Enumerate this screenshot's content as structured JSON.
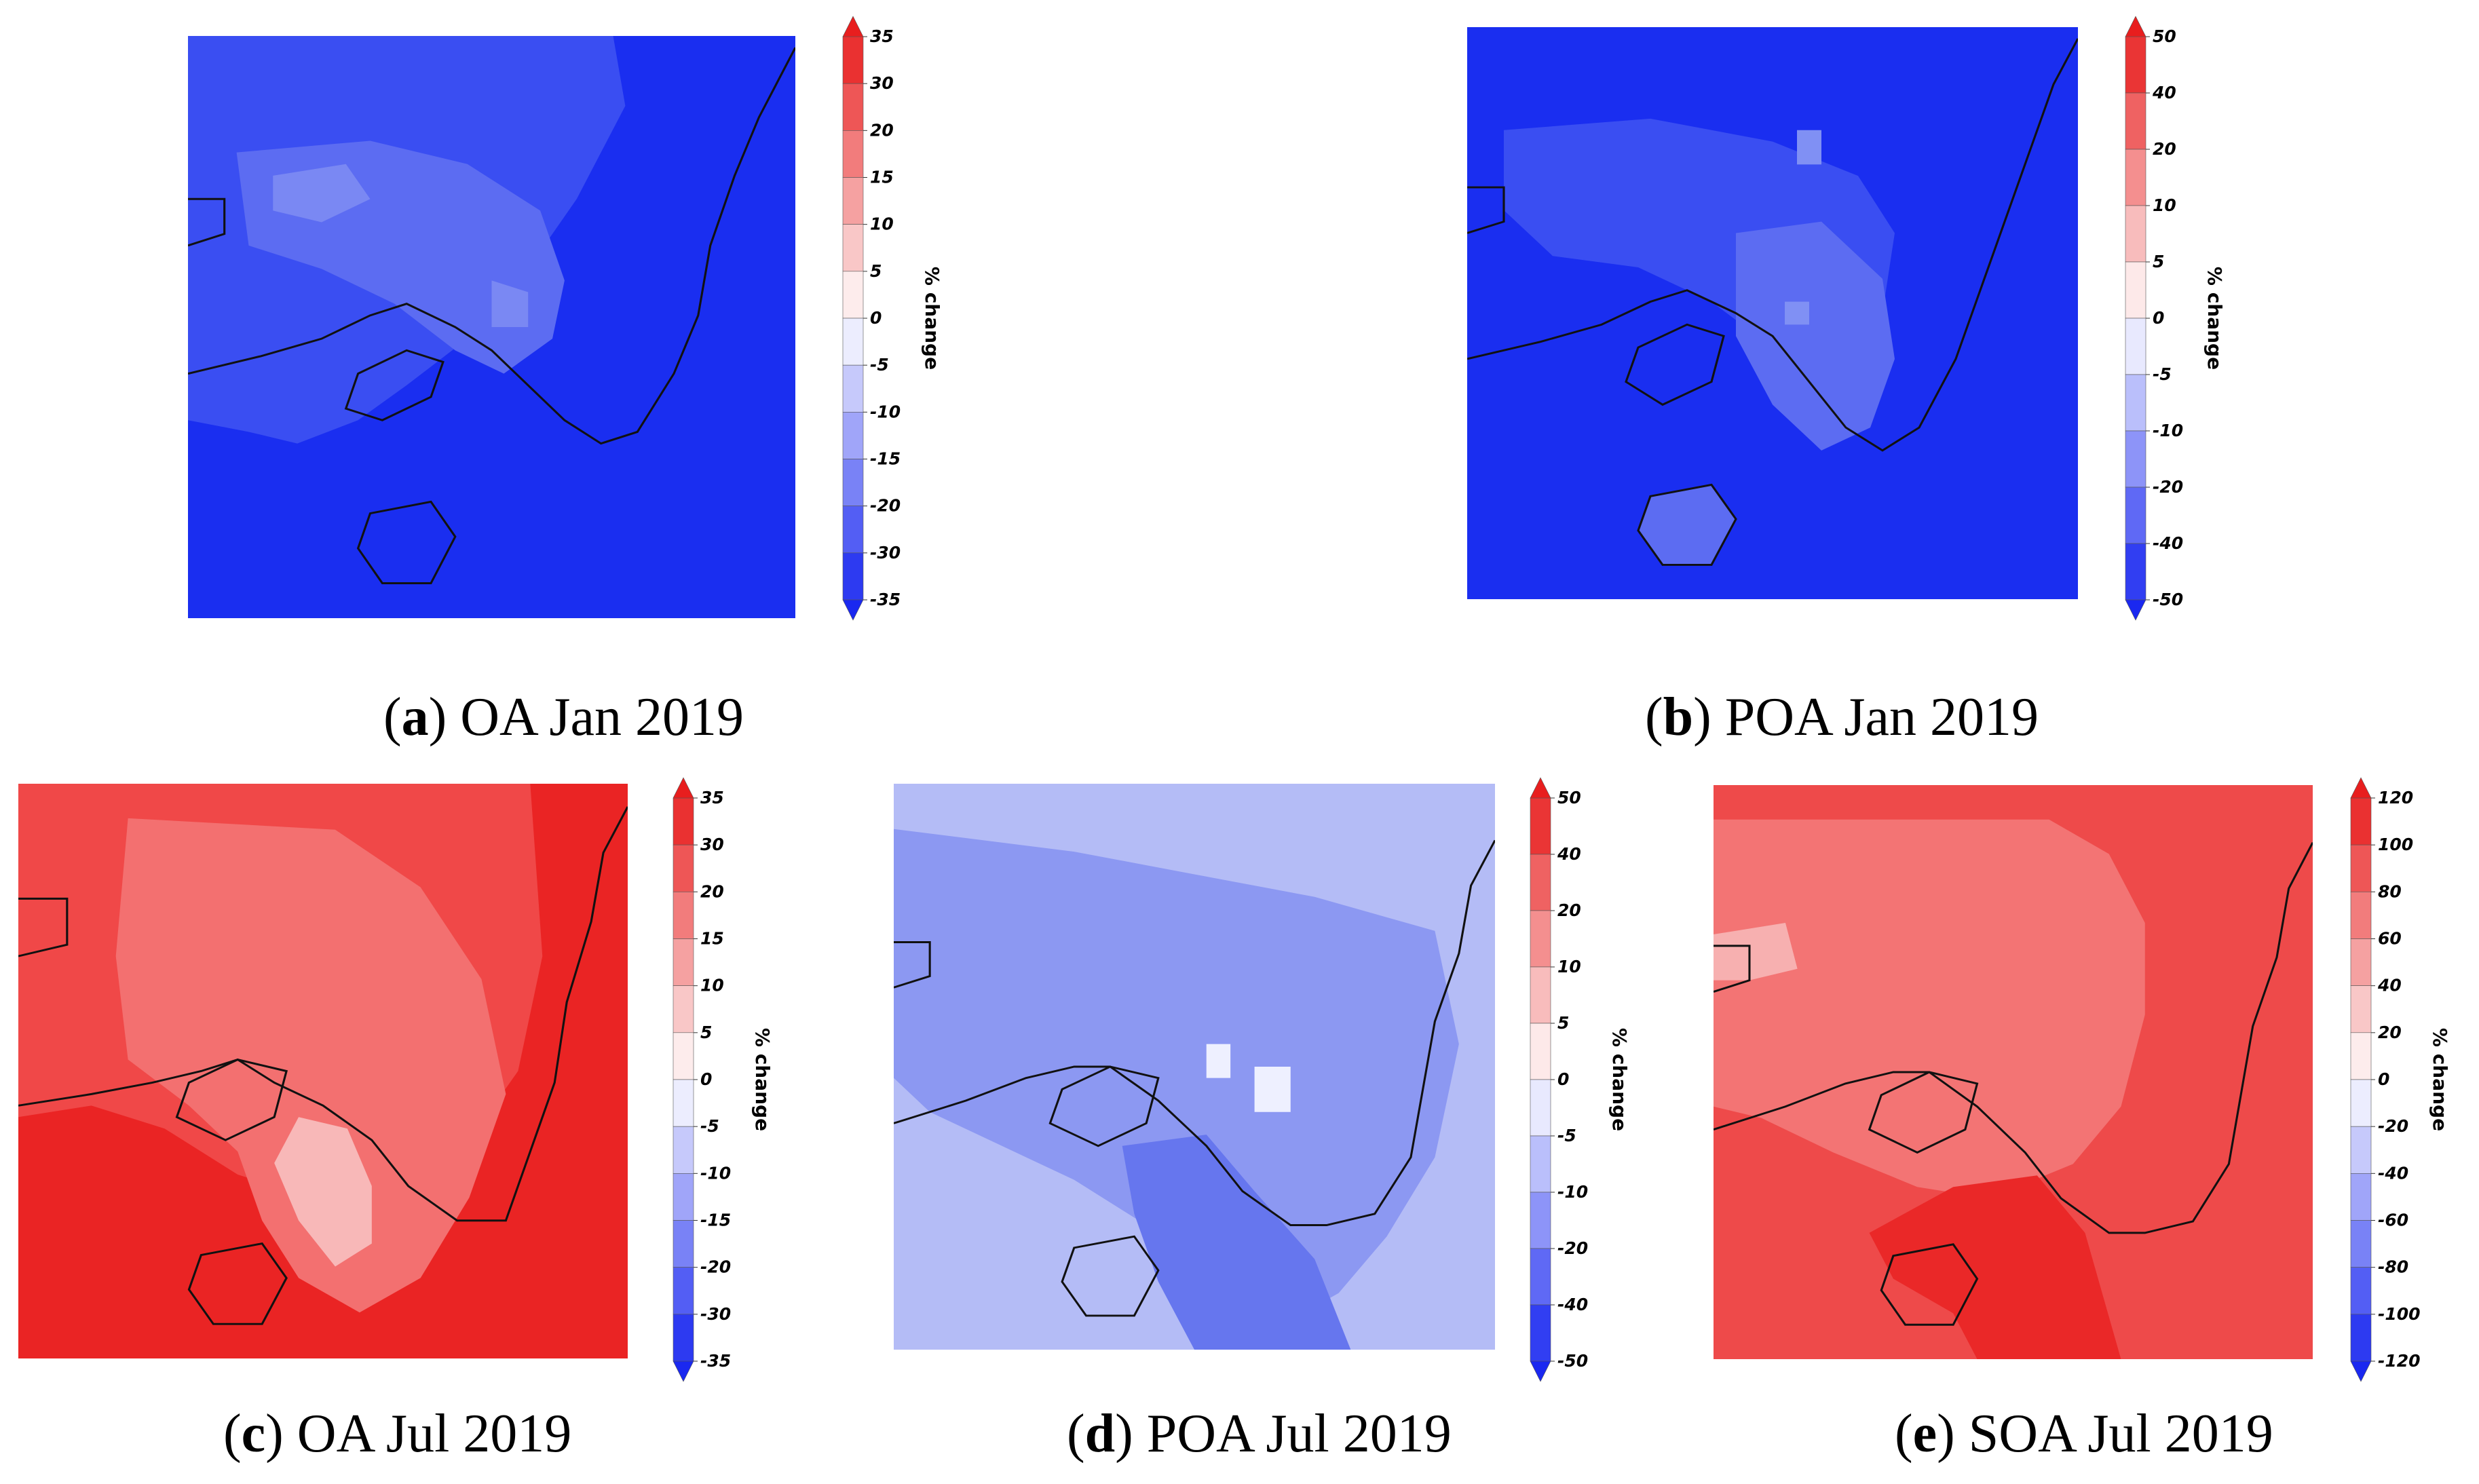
{
  "figure": {
    "colorbar_label": "% change",
    "panels": [
      {
        "id": "a",
        "caption_letter": "a",
        "caption_text": "OA Jan 2019",
        "ticks": [
          "35",
          "30",
          "20",
          "15",
          "10",
          "5",
          "0",
          "-5",
          "-10",
          "-15",
          "-20",
          "-30",
          "-35"
        ],
        "colors": {
          "base": "#1a2ef0",
          "mid": "#3a4ef2",
          "light": "#5c6cf2",
          "lightest": "#7a88f3"
        }
      },
      {
        "id": "b",
        "caption_letter": "b",
        "caption_text": "POA Jan 2019",
        "ticks": [
          "50",
          "40",
          "20",
          "10",
          "5",
          "0",
          "-5",
          "-10",
          "-20",
          "-40",
          "-50"
        ],
        "colors": {
          "base": "#1a2ef0",
          "mid": "#3a4ef2",
          "light": "#5c6cf2",
          "lightest": "#8090f4"
        }
      },
      {
        "id": "c",
        "caption_letter": "c",
        "caption_text": "OA Jul 2019",
        "ticks": [
          "35",
          "30",
          "20",
          "15",
          "10",
          "5",
          "0",
          "-5",
          "-10",
          "-15",
          "-20",
          "-30",
          "-35"
        ],
        "colors": {
          "base": "#ea2424",
          "mid": "#f04848",
          "light": "#f37070",
          "lightest": "#f8b8b8"
        }
      },
      {
        "id": "d",
        "caption_letter": "d",
        "caption_text": "POA Jul 2019",
        "ticks": [
          "50",
          "40",
          "20",
          "10",
          "5",
          "0",
          "-5",
          "-10",
          "-20",
          "-40",
          "-50"
        ],
        "colors": {
          "base": "#b4bcf6",
          "mid": "#8c98f2",
          "light": "#6676ee",
          "lightest": "#eef0ff"
        }
      },
      {
        "id": "e",
        "caption_letter": "e",
        "caption_text": "SOA Jul 2019",
        "ticks": [
          "120",
          "100",
          "80",
          "60",
          "40",
          "20",
          "0",
          "-20",
          "-40",
          "-60",
          "-80",
          "-100",
          "-120"
        ],
        "colors": {
          "base": "#ee4a4a",
          "mid": "#f37474",
          "light": "#ea2828",
          "lightest": "#f7b0b0"
        }
      }
    ]
  }
}
